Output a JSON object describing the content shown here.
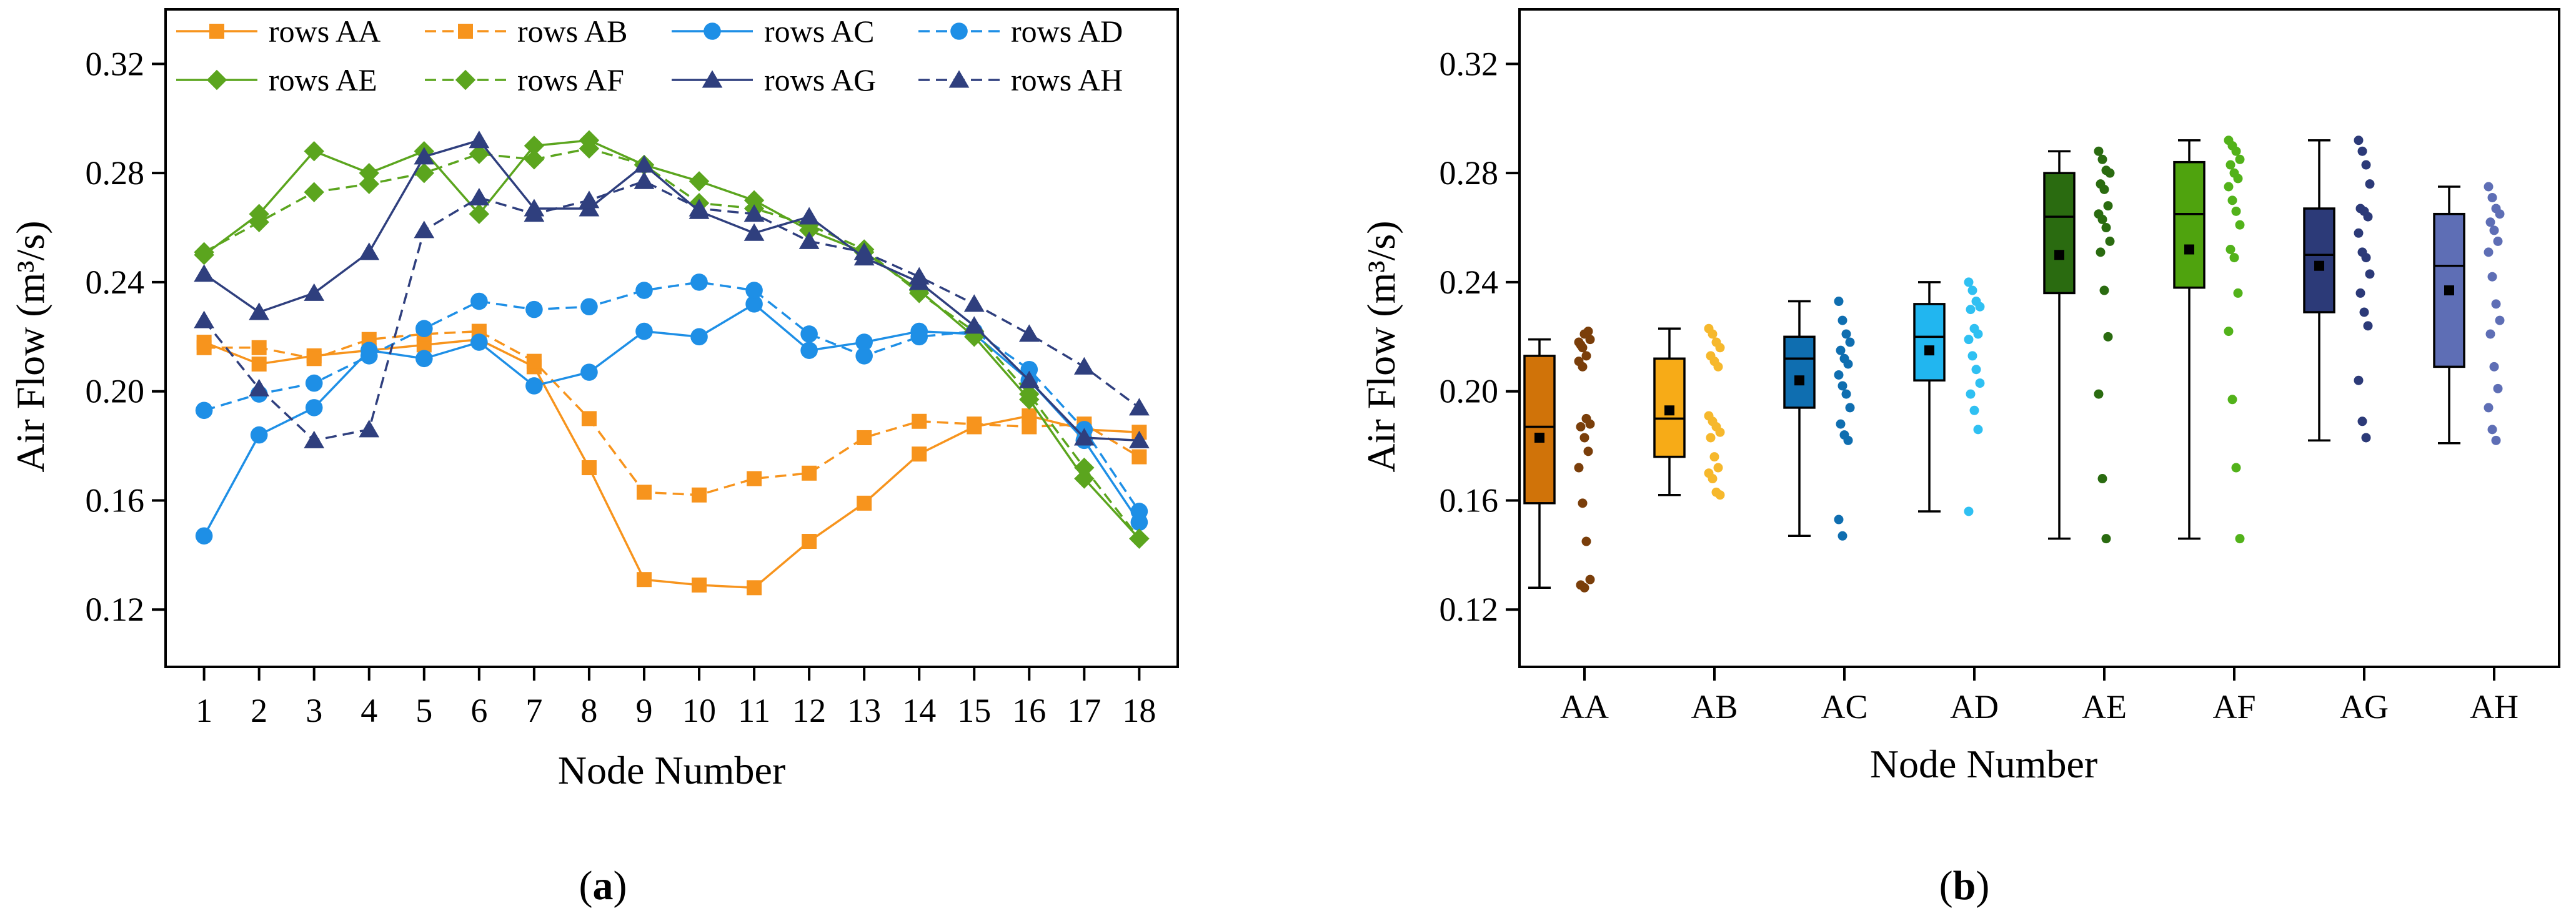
{
  "panels": [
    {
      "label_open": "(",
      "label_letter": "a",
      "label_close": ")"
    },
    {
      "label_open": "(",
      "label_letter": "b",
      "label_close": ")"
    }
  ],
  "chart_data": [
    {
      "type": "line",
      "xlabel": "Node Number",
      "ylabel": "Air Flow (m³/s)",
      "x": [
        1,
        2,
        3,
        4,
        5,
        6,
        7,
        8,
        9,
        10,
        11,
        12,
        13,
        14,
        15,
        16,
        17,
        18
      ],
      "xlim": [
        0.3,
        18.7
      ],
      "ylim": [
        0.099,
        0.34
      ],
      "yticks": [
        0.12,
        0.16,
        0.2,
        0.24,
        0.28,
        0.32
      ],
      "ytick_labels": [
        "0.12",
        "0.16",
        "0.20",
        "0.24",
        "0.28",
        "0.32"
      ],
      "legend_position": "top",
      "legend_columns": 4,
      "series": [
        {
          "name": "rows AA",
          "color": "#F7941D",
          "marker": "square",
          "dashed": false,
          "values": [
            0.218,
            0.21,
            0.213,
            0.215,
            0.217,
            0.219,
            0.209,
            0.172,
            0.131,
            0.129,
            0.128,
            0.145,
            0.159,
            0.177,
            0.187,
            0.191,
            0.186,
            0.185
          ]
        },
        {
          "name": "rows AB",
          "color": "#F7941D",
          "marker": "square",
          "dashed": true,
          "values": [
            0.216,
            0.216,
            0.212,
            0.219,
            0.221,
            0.222,
            0.211,
            0.19,
            0.163,
            0.162,
            0.168,
            0.17,
            0.183,
            0.189,
            0.188,
            0.187,
            0.188,
            0.176
          ]
        },
        {
          "name": "rows AC",
          "color": "#1E8FE6",
          "marker": "circle",
          "dashed": false,
          "values": [
            0.147,
            0.184,
            0.194,
            0.215,
            0.212,
            0.218,
            0.202,
            0.207,
            0.222,
            0.22,
            0.232,
            0.215,
            0.218,
            0.222,
            0.221,
            0.204,
            0.182,
            0.152
          ]
        },
        {
          "name": "rows AD",
          "color": "#1E8FE6",
          "marker": "circle",
          "dashed": true,
          "values": [
            0.193,
            0.199,
            0.203,
            0.213,
            0.223,
            0.233,
            0.23,
            0.231,
            0.237,
            0.24,
            0.237,
            0.221,
            0.213,
            0.22,
            0.222,
            0.208,
            0.186,
            0.156
          ]
        },
        {
          "name": "rows AE",
          "color": "#5BA51E",
          "marker": "diamond",
          "dashed": false,
          "values": [
            0.25,
            0.265,
            0.288,
            0.28,
            0.288,
            0.265,
            0.29,
            0.292,
            0.283,
            0.277,
            0.27,
            0.259,
            0.251,
            0.237,
            0.22,
            0.197,
            0.168,
            0.146
          ]
        },
        {
          "name": "rows AF",
          "color": "#5BA51E",
          "marker": "diamond",
          "dashed": true,
          "values": [
            0.251,
            0.262,
            0.273,
            0.276,
            0.28,
            0.287,
            0.285,
            0.289,
            0.283,
            0.269,
            0.267,
            0.261,
            0.252,
            0.236,
            0.222,
            0.199,
            0.172,
            0.146
          ]
        },
        {
          "name": "rows AG",
          "color": "#2F3F7E",
          "marker": "triangle",
          "dashed": false,
          "values": [
            0.243,
            0.229,
            0.236,
            0.251,
            0.286,
            0.292,
            0.267,
            0.267,
            0.283,
            0.266,
            0.258,
            0.264,
            0.249,
            0.24,
            0.224,
            0.204,
            0.183,
            0.182
          ]
        },
        {
          "name": "rows AH",
          "color": "#2F3F7E",
          "marker": "triangle",
          "dashed": true,
          "values": [
            0.226,
            0.201,
            0.182,
            0.186,
            0.259,
            0.271,
            0.265,
            0.27,
            0.277,
            0.267,
            0.265,
            0.255,
            0.251,
            0.242,
            0.232,
            0.221,
            0.209,
            0.194
          ]
        }
      ]
    },
    {
      "type": "box",
      "xlabel": "Node Number",
      "ylabel": "Air Flow (m³/s)",
      "categories": [
        "AA",
        "AB",
        "AC",
        "AD",
        "AE",
        "AF",
        "AG",
        "AH"
      ],
      "ylim": [
        0.099,
        0.34
      ],
      "yticks": [
        0.12,
        0.16,
        0.2,
        0.24,
        0.28,
        0.32
      ],
      "ytick_labels": [
        "0.12",
        "0.16",
        "0.20",
        "0.24",
        "0.28",
        "0.32"
      ],
      "boxes": [
        {
          "category": "AA",
          "box_color": "#D07309",
          "point_color": "#7A3E0A",
          "min": 0.128,
          "q1": 0.159,
          "median": 0.187,
          "q3": 0.213,
          "max": 0.219,
          "mean": 0.183
        },
        {
          "category": "AB",
          "box_color": "#F7AB17",
          "point_color": "#F6B82C",
          "min": 0.162,
          "q1": 0.176,
          "median": 0.19,
          "q3": 0.212,
          "max": 0.223,
          "mean": 0.193
        },
        {
          "category": "AC",
          "box_color": "#0F6EB0",
          "point_color": "#0F6EB0",
          "min": 0.147,
          "q1": 0.194,
          "median": 0.212,
          "q3": 0.22,
          "max": 0.233,
          "mean": 0.204
        },
        {
          "category": "AD",
          "box_color": "#21B6F0",
          "point_color": "#2FC0F2",
          "min": 0.156,
          "q1": 0.204,
          "median": 0.22,
          "q3": 0.232,
          "max": 0.24,
          "mean": 0.215
        },
        {
          "category": "AE",
          "box_color": "#2A6B10",
          "point_color": "#2A6B10",
          "min": 0.146,
          "q1": 0.236,
          "median": 0.264,
          "q3": 0.28,
          "max": 0.288,
          "mean": 0.25
        },
        {
          "category": "AF",
          "box_color": "#4FA30E",
          "point_color": "#52B21A",
          "min": 0.146,
          "q1": 0.238,
          "median": 0.265,
          "q3": 0.284,
          "max": 0.292,
          "mean": 0.252
        },
        {
          "category": "AG",
          "box_color": "#2C3A78",
          "point_color": "#2C3A78",
          "min": 0.182,
          "q1": 0.229,
          "median": 0.25,
          "q3": 0.267,
          "max": 0.292,
          "mean": 0.246
        },
        {
          "category": "AH",
          "box_color": "#5E6EB5",
          "point_color": "#5E6EB5",
          "min": 0.181,
          "q1": 0.209,
          "median": 0.246,
          "q3": 0.265,
          "max": 0.275,
          "mean": 0.237
        }
      ],
      "points": {
        "AA": [
          0.218,
          0.216,
          0.213,
          0.219,
          0.217,
          0.221,
          0.222,
          0.211,
          0.209,
          0.19,
          0.188,
          0.187,
          0.183,
          0.178,
          0.172,
          0.159,
          0.145,
          0.131,
          0.129,
          0.128
        ],
        "AB": [
          0.223,
          0.221,
          0.218,
          0.216,
          0.213,
          0.211,
          0.209,
          0.191,
          0.189,
          0.187,
          0.185,
          0.183,
          0.176,
          0.172,
          0.17,
          0.168,
          0.163,
          0.162
        ],
        "AC": [
          0.233,
          0.226,
          0.221,
          0.218,
          0.215,
          0.212,
          0.21,
          0.206,
          0.202,
          0.199,
          0.194,
          0.188,
          0.184,
          0.182,
          0.153,
          0.147
        ],
        "AD": [
          0.24,
          0.237,
          0.233,
          0.231,
          0.23,
          0.223,
          0.221,
          0.219,
          0.213,
          0.208,
          0.203,
          0.199,
          0.193,
          0.186,
          0.156
        ],
        "AE": [
          0.288,
          0.285,
          0.281,
          0.28,
          0.276,
          0.274,
          0.268,
          0.265,
          0.263,
          0.26,
          0.255,
          0.251,
          0.237,
          0.22,
          0.199,
          0.168,
          0.146
        ],
        "AF": [
          0.292,
          0.29,
          0.288,
          0.285,
          0.283,
          0.28,
          0.278,
          0.275,
          0.27,
          0.266,
          0.261,
          0.252,
          0.249,
          0.236,
          0.222,
          0.197,
          0.172,
          0.146
        ],
        "AG": [
          0.292,
          0.288,
          0.283,
          0.276,
          0.267,
          0.266,
          0.264,
          0.258,
          0.251,
          0.249,
          0.243,
          0.236,
          0.229,
          0.224,
          0.204,
          0.189,
          0.183
        ],
        "AH": [
          0.275,
          0.271,
          0.267,
          0.265,
          0.262,
          0.259,
          0.255,
          0.251,
          0.242,
          0.232,
          0.226,
          0.221,
          0.209,
          0.201,
          0.194,
          0.186,
          0.182
        ]
      }
    }
  ]
}
